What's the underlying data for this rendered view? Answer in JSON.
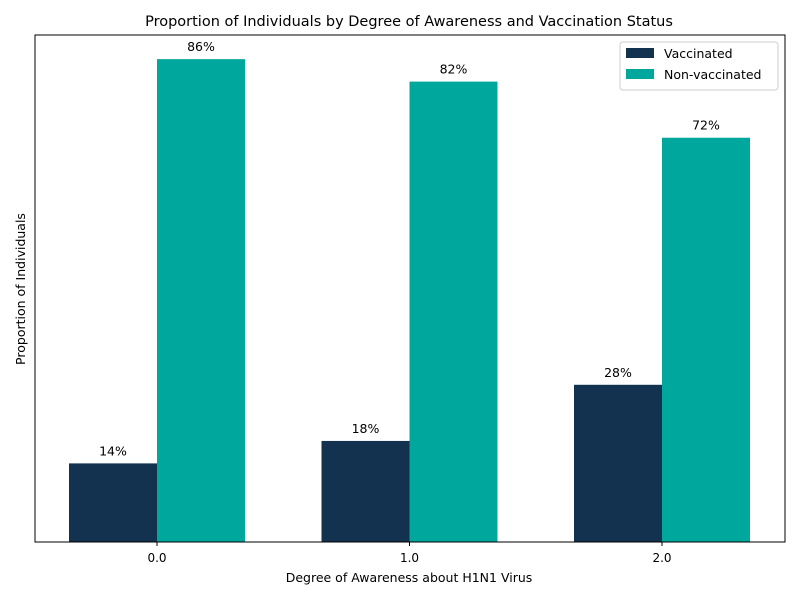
{
  "chart_data": {
    "type": "bar",
    "title": "Proportion of Individuals by Degree of Awareness and Vaccination Status",
    "xlabel": "Degree of Awareness about H1N1 Virus",
    "ylabel": "Proportion of Individuals",
    "categories": [
      "0.0",
      "1.0",
      "2.0"
    ],
    "series": [
      {
        "name": "Vaccinated",
        "values": [
          0.14,
          0.18,
          0.28
        ],
        "labels": [
          "14%",
          "18%",
          "28%"
        ],
        "color": "#12324f"
      },
      {
        "name": "Non-vaccinated",
        "values": [
          0.86,
          0.82,
          0.72
        ],
        "labels": [
          "86%",
          "82%",
          "72%"
        ],
        "color": "#00a79d"
      }
    ],
    "ylim": [
      0,
      0.903
    ],
    "y_ticks_visible": false,
    "grid": false,
    "legend_position": "top-right"
  }
}
